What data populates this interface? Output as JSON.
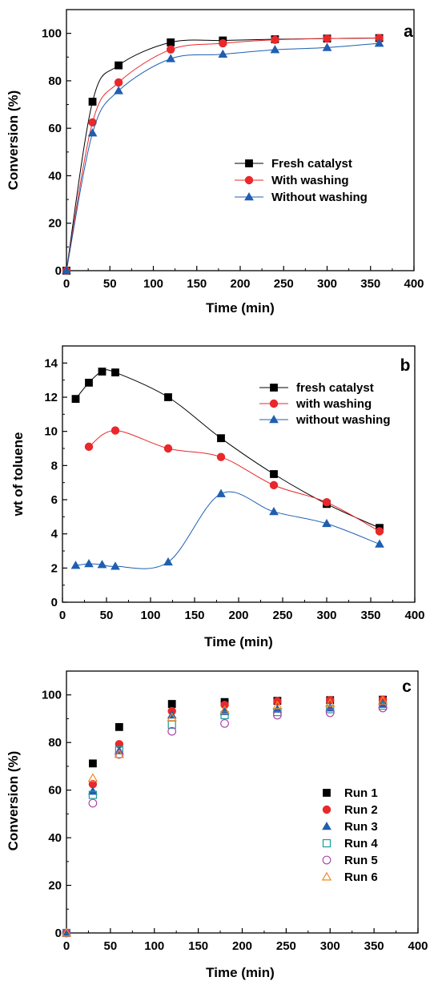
{
  "chart_data": [
    {
      "type": "scatter",
      "panel_label": "a",
      "xlabel": "Time (min)",
      "ylabel": "Conversion (%)",
      "xlim": [
        0,
        400
      ],
      "ylim": [
        0,
        110
      ],
      "xticks": [
        0,
        50,
        100,
        150,
        200,
        250,
        300,
        350,
        400
      ],
      "yticks": [
        0,
        20,
        40,
        60,
        80,
        100
      ],
      "legend_position": "center-right",
      "fitted_curves": true,
      "series": [
        {
          "name": "Fresh catalyst",
          "marker": "square",
          "color": "#000000",
          "x": [
            0,
            30,
            60,
            120,
            180,
            240,
            300,
            360
          ],
          "y": [
            0,
            71.2,
            86.5,
            96.2,
            97.0,
            97.5,
            97.8,
            98.0
          ]
        },
        {
          "name": "With washing",
          "marker": "circle",
          "color": "#e8282b",
          "x": [
            0,
            30,
            60,
            120,
            180,
            240,
            300,
            360
          ],
          "y": [
            0,
            62.5,
            79.3,
            93.2,
            95.8,
            97.3,
            97.8,
            98.0
          ]
        },
        {
          "name": "Without washing",
          "marker": "triangle",
          "color": "#1f5fb0",
          "x": [
            0,
            30,
            60,
            120,
            180,
            240,
            300,
            360
          ],
          "y": [
            0,
            58.0,
            75.8,
            89.3,
            91.2,
            93.1,
            94.0,
            95.8
          ]
        }
      ]
    },
    {
      "type": "scatter",
      "panel_label": "b",
      "xlabel": "Time (min)",
      "ylabel": "wt of toluene",
      "xlim": [
        0,
        400
      ],
      "ylim": [
        0,
        15
      ],
      "xticks": [
        0,
        50,
        100,
        150,
        200,
        250,
        300,
        350,
        400
      ],
      "yticks": [
        0,
        2,
        4,
        6,
        8,
        10,
        12,
        14
      ],
      "legend_position": "top-right",
      "fitted_curves": true,
      "series": [
        {
          "name": "fresh catalyst",
          "marker": "square",
          "color": "#000000",
          "x": [
            15,
            30,
            45,
            60,
            120,
            180,
            240,
            300,
            360
          ],
          "y": [
            11.9,
            12.85,
            13.5,
            13.45,
            12.0,
            9.6,
            7.5,
            5.75,
            4.35
          ]
        },
        {
          "name": "with washing",
          "marker": "circle",
          "color": "#e8282b",
          "x": [
            30,
            60,
            120,
            180,
            240,
            300,
            360
          ],
          "y": [
            9.1,
            10.05,
            9.0,
            8.5,
            6.85,
            5.85,
            4.15
          ]
        },
        {
          "name": "without washing",
          "marker": "triangle",
          "color": "#1f5fb0",
          "x": [
            15,
            30,
            45,
            60,
            120,
            180,
            240,
            300,
            360
          ],
          "y": [
            2.15,
            2.25,
            2.2,
            2.1,
            2.35,
            6.35,
            5.3,
            4.6,
            3.4
          ]
        }
      ]
    },
    {
      "type": "scatter",
      "panel_label": "c",
      "xlabel": "Time (min)",
      "ylabel": "Conversion (%)",
      "xlim": [
        0,
        400
      ],
      "ylim": [
        0,
        110
      ],
      "xticks": [
        0,
        50,
        100,
        150,
        200,
        250,
        300,
        350,
        400
      ],
      "yticks": [
        0,
        20,
        40,
        60,
        80,
        100
      ],
      "legend_position": "center-right",
      "fitted_curves": false,
      "series": [
        {
          "name": "Run 1",
          "marker": "square",
          "color": "#000000",
          "x": [
            0,
            30,
            60,
            120,
            180,
            240,
            300,
            360
          ],
          "y": [
            0,
            71.2,
            86.5,
            96.2,
            97.0,
            97.5,
            97.8,
            98.0
          ]
        },
        {
          "name": "Run 2",
          "marker": "circle",
          "color": "#e8282b",
          "x": [
            0,
            30,
            60,
            120,
            180,
            240,
            300,
            360
          ],
          "y": [
            0,
            62.5,
            79.3,
            93.2,
            95.8,
            97.3,
            97.8,
            98.0
          ]
        },
        {
          "name": "Run 3",
          "marker": "triangle",
          "color": "#1f5fb0",
          "x": [
            0,
            30,
            60,
            120,
            180,
            240,
            300,
            360
          ],
          "y": [
            0,
            59.5,
            76.5,
            91.5,
            93.0,
            94.0,
            94.5,
            96.0
          ]
        },
        {
          "name": "Run 4",
          "marker": "square-open",
          "color": "#1a9a9a",
          "x": [
            0,
            30,
            60,
            120,
            180,
            240,
            300,
            360
          ],
          "y": [
            0,
            58.0,
            76.8,
            87.5,
            91.5,
            92.8,
            94.0,
            95.5
          ]
        },
        {
          "name": "Run 5",
          "marker": "circle-open",
          "color": "#b048b0",
          "x": [
            0,
            30,
            60,
            120,
            180,
            240,
            300,
            360
          ],
          "y": [
            0,
            54.5,
            75.0,
            84.7,
            88.0,
            91.5,
            92.5,
            94.5
          ]
        },
        {
          "name": "Run 6",
          "marker": "triangle-open",
          "color": "#f08a24",
          "x": [
            0,
            30,
            60,
            120,
            180,
            240,
            300,
            360
          ],
          "y": [
            0,
            65.0,
            75.0,
            90.5,
            93.5,
            95.5,
            96.5,
            97.5
          ]
        }
      ]
    }
  ]
}
